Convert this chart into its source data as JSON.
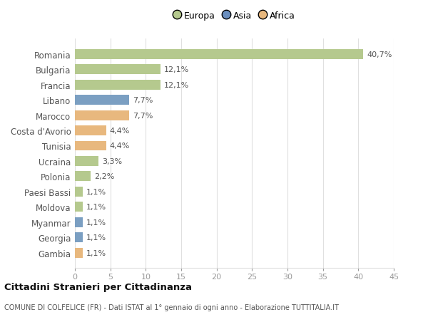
{
  "countries": [
    "Romania",
    "Bulgaria",
    "Francia",
    "Libano",
    "Marocco",
    "Costa d'Avorio",
    "Tunisia",
    "Ucraina",
    "Polonia",
    "Paesi Bassi",
    "Moldova",
    "Myanmar",
    "Georgia",
    "Gambia"
  ],
  "values": [
    40.7,
    12.1,
    12.1,
    7.7,
    7.7,
    4.4,
    4.4,
    3.3,
    2.2,
    1.1,
    1.1,
    1.1,
    1.1,
    1.1
  ],
  "labels": [
    "40,7%",
    "12,1%",
    "12,1%",
    "7,7%",
    "7,7%",
    "4,4%",
    "4,4%",
    "3,3%",
    "2,2%",
    "1,1%",
    "1,1%",
    "1,1%",
    "1,1%",
    "1,1%"
  ],
  "continents": [
    "Europa",
    "Europa",
    "Europa",
    "Asia",
    "Africa",
    "Africa",
    "Africa",
    "Europa",
    "Europa",
    "Europa",
    "Europa",
    "Asia",
    "Asia",
    "Africa"
  ],
  "colors": {
    "Europa": "#b5c98e",
    "Asia": "#7b9fc2",
    "Africa": "#e8b87e"
  },
  "legend_colors": {
    "Europa": "#b5c98e",
    "Asia": "#6b8fbf",
    "Africa": "#e8b87e"
  },
  "xlim": [
    0,
    45
  ],
  "xticks": [
    0,
    5,
    10,
    15,
    20,
    25,
    30,
    35,
    40,
    45
  ],
  "title": "Cittadini Stranieri per Cittadinanza",
  "subtitle": "COMUNE DI COLFELICE (FR) - Dati ISTAT al 1° gennaio di ogni anno - Elaborazione TUTTITALIA.IT",
  "bg_color": "#ffffff",
  "grid_color": "#e0e0e0"
}
